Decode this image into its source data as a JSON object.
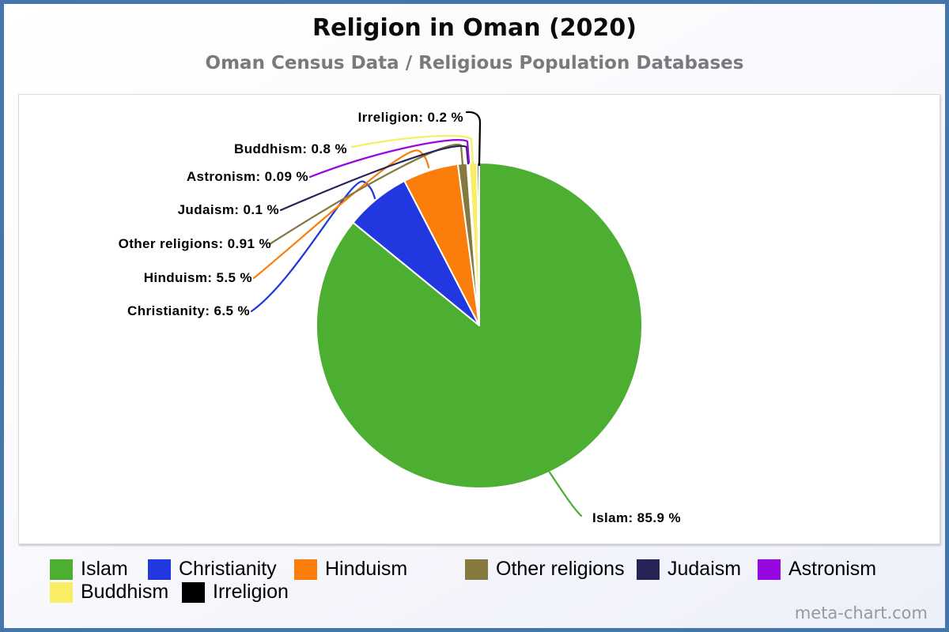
{
  "header": {
    "title": "Religion in Oman (2020)",
    "subtitle": "Oman Census Data / Religious Population Databases"
  },
  "watermark": "meta-chart.com",
  "style": {
    "frame_border_color": "#4476AC",
    "plot_background": "#ffffff",
    "slice_separator_color": "#ffffff",
    "subtitle_color": "#7a7a7a",
    "watermark_color": "#939aa4"
  },
  "chart_data": {
    "type": "pie",
    "title": "Religion in Oman (2020)",
    "subtitle": "Oman Census Data / Religious Population Databases",
    "unit": "%",
    "start_angle_deg": -90,
    "direction": "clockwise",
    "legend_position": "bottom",
    "labels": [
      "Islam",
      "Christianity",
      "Hinduism",
      "Other religions",
      "Judaism",
      "Astronism",
      "Buddhism",
      "Irreligion"
    ],
    "values": [
      85.9,
      6.5,
      5.5,
      0.91,
      0.1,
      0.09,
      0.8,
      0.2
    ],
    "colors": [
      "#4CAF32",
      "#2137DF",
      "#FB7E0C",
      "#867940",
      "#262355",
      "#9708E0",
      "#F8ED64",
      "#000000"
    ],
    "callouts": [
      "Islam: 85.9 %",
      "Christianity: 6.5 %",
      "Hinduism: 5.5 %",
      "Other religions: 0.91 %",
      "Judaism: 0.1 %",
      "Astronism: 0.09 %",
      "Buddhism: 0.8 %",
      "Irreligion: 0.2 %"
    ]
  }
}
